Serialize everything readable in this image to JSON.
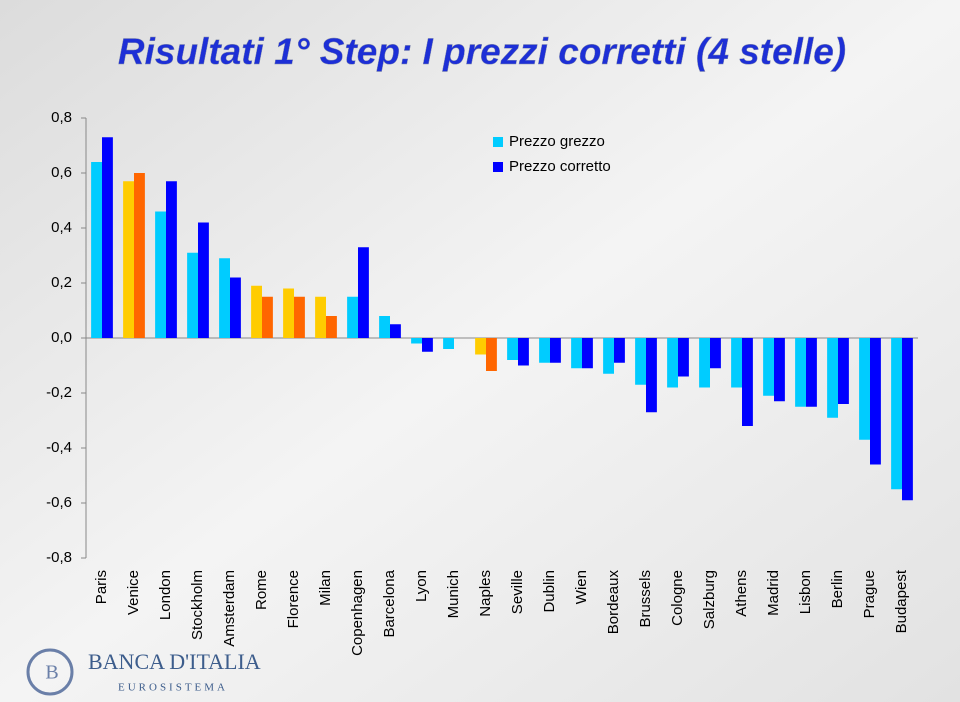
{
  "chart_data": {
    "type": "bar",
    "title": "Risultati 1° Step: I prezzi corretti (4 stelle)",
    "categories": [
      "Paris",
      "Venice",
      "London",
      "Stockholm",
      "Amsterdam",
      "Rome",
      "Florence",
      "Milan",
      "Copenhagen",
      "Barcelona",
      "Lyon",
      "Munich",
      "Naples",
      "Seville",
      "Dublin",
      "Wien",
      "Bordeaux",
      "Brussels",
      "Cologne",
      "Salzburg",
      "Athens",
      "Madrid",
      "Lisbon",
      "Berlin",
      "Prague",
      "Budapest"
    ],
    "series": [
      {
        "name": "Prezzo grezzo",
        "color": "#00ccff",
        "colors": [
          "#00ccff",
          "#ffcc00",
          "#00ccff",
          "#00ccff",
          "#00ccff",
          "#ffcc00",
          "#ffcc00",
          "#ffcc00",
          "#00ccff",
          "#00ccff",
          "#00ccff",
          "#00ccff",
          "#ffcc00",
          "#00ccff",
          "#00ccff",
          "#00ccff",
          "#00ccff",
          "#00ccff",
          "#00ccff",
          "#00ccff",
          "#00ccff",
          "#00ccff",
          "#00ccff",
          "#00ccff",
          "#00ccff",
          "#00ccff"
        ],
        "values": [
          0.64,
          0.57,
          0.46,
          0.31,
          0.29,
          0.19,
          0.18,
          0.15,
          0.15,
          0.08,
          -0.02,
          -0.04,
          -0.06,
          -0.08,
          -0.09,
          -0.11,
          -0.13,
          -0.17,
          -0.18,
          -0.18,
          -0.18,
          -0.21,
          -0.25,
          -0.29,
          -0.37,
          -0.55
        ]
      },
      {
        "name": "Prezzo corretto",
        "color": "#0000ff",
        "colors": [
          "#0000ff",
          "#ff6600",
          "#0000ff",
          "#0000ff",
          "#0000ff",
          "#ff6600",
          "#ff6600",
          "#ff6600",
          "#0000ff",
          "#0000ff",
          "#0000ff",
          "#0000ff",
          "#ff6600",
          "#0000ff",
          "#0000ff",
          "#0000ff",
          "#0000ff",
          "#0000ff",
          "#0000ff",
          "#0000ff",
          "#0000ff",
          "#0000ff",
          "#0000ff",
          "#0000ff",
          "#0000ff",
          "#0000ff"
        ],
        "values": [
          0.73,
          0.6,
          0.57,
          0.42,
          0.22,
          0.15,
          0.15,
          0.08,
          0.33,
          0.05,
          -0.05,
          0,
          -0.12,
          -0.1,
          -0.09,
          -0.11,
          -0.09,
          -0.27,
          -0.14,
          -0.11,
          -0.32,
          -0.23,
          -0.25,
          -0.24,
          -0.46,
          -0.59
        ]
      }
    ],
    "ylim": [
      -0.8,
      0.8
    ],
    "yticks": [
      {
        "value": -0.8,
        "label": "-0,8"
      },
      {
        "value": -0.6,
        "label": "-0,6"
      },
      {
        "value": -0.4,
        "label": "-0,4"
      },
      {
        "value": -0.2,
        "label": "-0,2"
      },
      {
        "value": 0,
        "label": "0,0"
      },
      {
        "value": 0.2,
        "label": "0,2"
      },
      {
        "value": 0.4,
        "label": "0,4"
      },
      {
        "value": 0.6,
        "label": "0,6"
      },
      {
        "value": 0.8,
        "label": "0,8"
      }
    ],
    "grid": false,
    "legend": "top-center"
  },
  "logo": {
    "name": "BANCA D'ITALIA",
    "sub": "EUROSISTEMA"
  }
}
